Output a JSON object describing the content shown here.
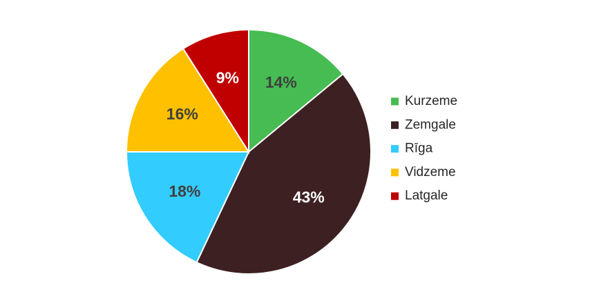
{
  "chart_data": {
    "type": "pie",
    "categories": [
      "Kurzeme",
      "Zemgale",
      "Rīga",
      "Vidzeme",
      "Latgale"
    ],
    "values": [
      14,
      43,
      18,
      16,
      9
    ],
    "value_labels": [
      "14%",
      "43%",
      "18%",
      "16%",
      "9%"
    ],
    "colors": [
      "#46bc52",
      "#3d2022",
      "#33ccff",
      "#ffc000",
      "#c00000"
    ],
    "legend": "right"
  }
}
